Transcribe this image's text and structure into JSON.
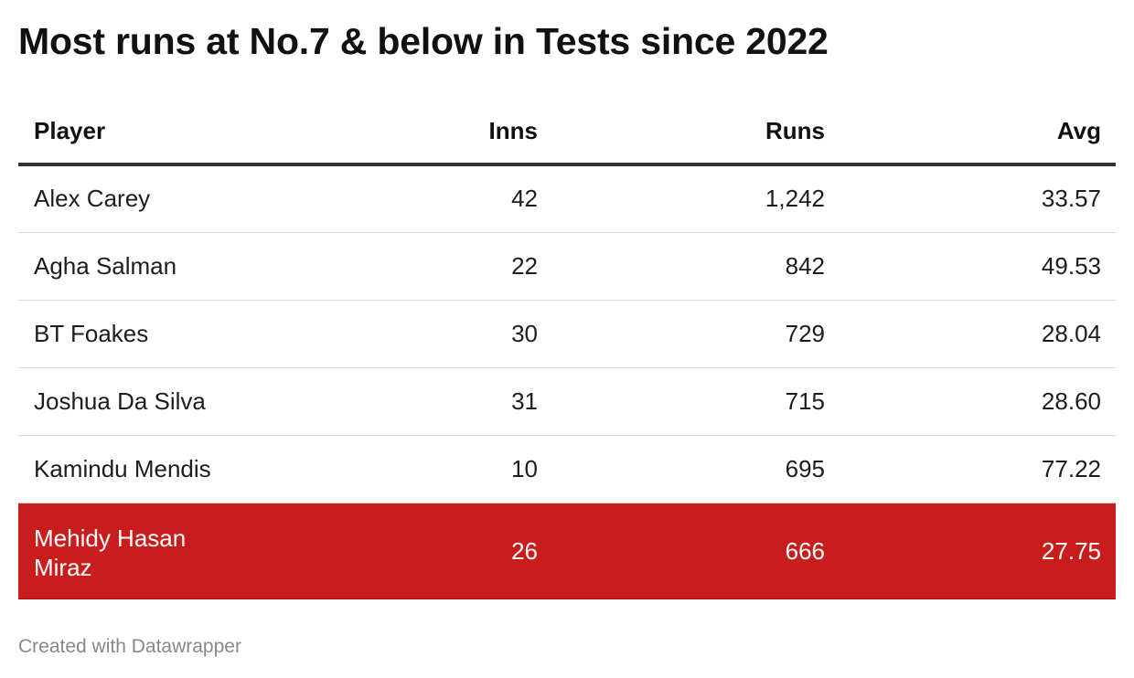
{
  "chart_data": {
    "type": "table",
    "title": "Most runs at No.7 & below in Tests since 2022",
    "columns": [
      "Player",
      "Inns",
      "Runs",
      "Avg"
    ],
    "rows": [
      {
        "player": "Alex Carey",
        "inns": "42",
        "runs": "1,242",
        "avg": "33.57"
      },
      {
        "player": "Agha Salman",
        "inns": "22",
        "runs": "842",
        "avg": "49.53"
      },
      {
        "player": "BT Foakes",
        "inns": "30",
        "runs": "729",
        "avg": "28.04"
      },
      {
        "player": "Joshua Da Silva",
        "inns": "31",
        "runs": "715",
        "avg": "28.60"
      },
      {
        "player": "Kamindu Mendis",
        "inns": "10",
        "runs": "695",
        "avg": "77.22"
      },
      {
        "player": "Mehidy Hasan Miraz",
        "inns": "26",
        "runs": "666",
        "avg": "27.75",
        "highlighted": true
      }
    ]
  },
  "colors": {
    "highlight": "#c91c1c",
    "header_rule": "#333333",
    "row_rule": "#dcdcdc"
  },
  "footer": "Created with Datawrapper"
}
